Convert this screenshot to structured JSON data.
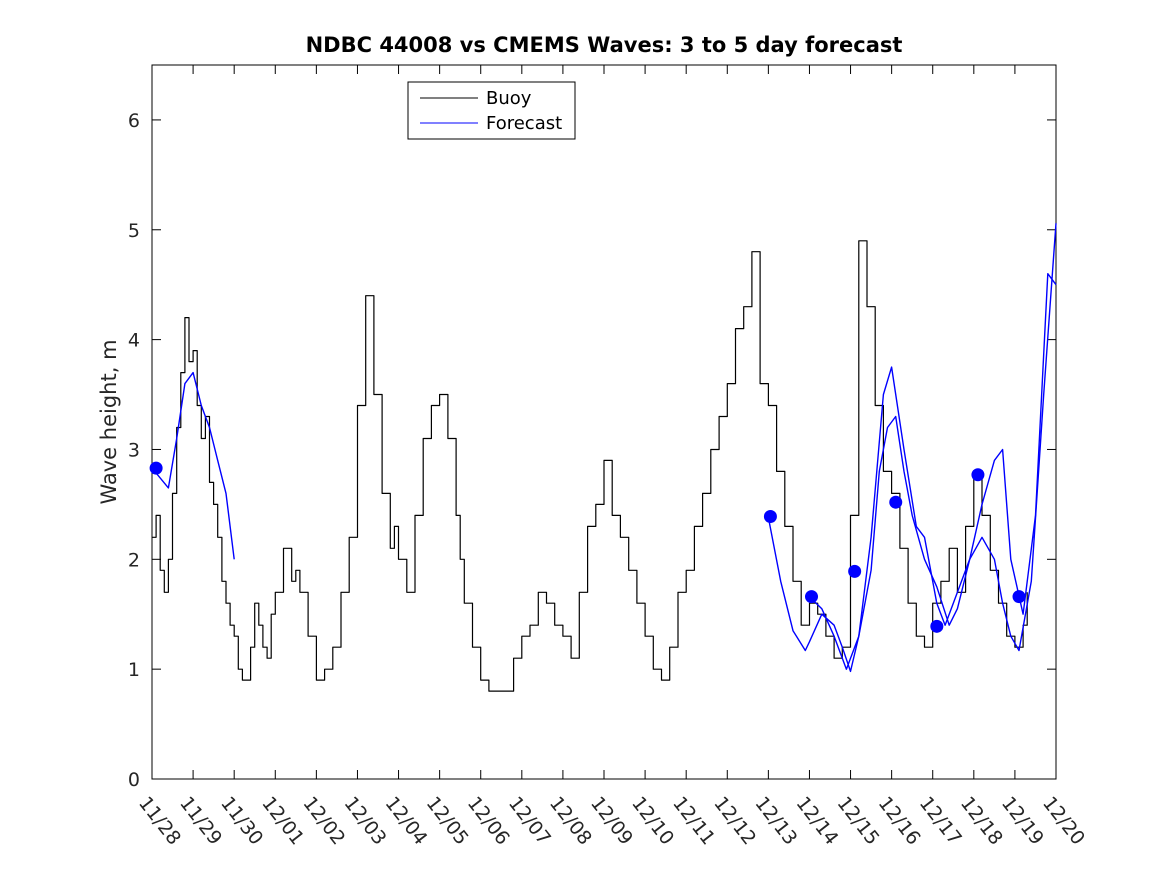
{
  "chart_data": {
    "type": "line",
    "title": "NDBC 44008 vs CMEMS Waves: 3 to 5 day forecast",
    "xlabel": "",
    "ylabel": "Wave height, m",
    "xlim": [
      0,
      22
    ],
    "ylim": [
      0,
      6.5
    ],
    "x_tick_values": [
      0,
      1,
      2,
      3,
      4,
      5,
      6,
      7,
      8,
      9,
      10,
      11,
      12,
      13,
      14,
      15,
      16,
      17,
      18,
      19,
      20,
      21,
      22
    ],
    "x_tick_labels": [
      "11/28",
      "11/29",
      "11/30",
      "12/01",
      "12/02",
      "12/03",
      "12/04",
      "12/05",
      "12/06",
      "12/07",
      "12/08",
      "12/09",
      "12/10",
      "12/11",
      "12/12",
      "12/13",
      "12/14",
      "12/15",
      "12/16",
      "12/17",
      "12/18",
      "12/19",
      "12/20"
    ],
    "y_tick_values": [
      0,
      1,
      2,
      3,
      4,
      5,
      6
    ],
    "y_tick_labels": [
      "0",
      "1",
      "2",
      "3",
      "4",
      "5",
      "6"
    ],
    "legend": {
      "placement": "top-center",
      "entries": [
        "Buoy",
        "Forecast"
      ]
    },
    "colors": {
      "buoy": "#000000",
      "forecast": "#0000ff",
      "markers": "#0000ff"
    },
    "series": [
      {
        "name": "Buoy",
        "color": "#000000",
        "x": [
          0,
          0.1,
          0.2,
          0.3,
          0.4,
          0.5,
          0.6,
          0.7,
          0.8,
          0.9,
          1.0,
          1.1,
          1.2,
          1.3,
          1.4,
          1.5,
          1.6,
          1.7,
          1.8,
          1.9,
          2.0,
          2.1,
          2.2,
          2.3,
          2.4,
          2.5,
          2.6,
          2.7,
          2.8,
          2.9,
          3.0,
          3.2,
          3.4,
          3.5,
          3.6,
          3.8,
          4.0,
          4.2,
          4.4,
          4.6,
          4.8,
          5.0,
          5.2,
          5.4,
          5.6,
          5.8,
          5.9,
          6.0,
          6.2,
          6.4,
          6.6,
          6.8,
          7.0,
          7.2,
          7.4,
          7.5,
          7.6,
          7.8,
          8.0,
          8.2,
          8.4,
          8.6,
          8.8,
          9.0,
          9.2,
          9.4,
          9.6,
          9.8,
          10.0,
          10.2,
          10.4,
          10.6,
          10.8,
          11.0,
          11.2,
          11.4,
          11.6,
          11.8,
          12.0,
          12.2,
          12.4,
          12.6,
          12.8,
          13.0,
          13.2,
          13.4,
          13.6,
          13.8,
          14.0,
          14.2,
          14.4,
          14.6,
          14.8,
          15.0,
          15.2,
          15.4,
          15.6,
          15.8,
          16.0,
          16.2,
          16.4,
          16.6,
          16.8,
          17.0,
          17.2,
          17.4,
          17.6,
          17.8,
          18.0,
          18.2,
          18.4,
          18.6,
          18.8,
          19.0,
          19.2,
          19.4,
          19.6,
          19.8,
          20.0,
          20.2,
          20.4,
          20.6,
          20.8,
          21.0,
          21.2,
          21.3
        ],
        "values": [
          2.2,
          2.4,
          1.9,
          1.7,
          2.0,
          2.6,
          3.2,
          3.7,
          4.2,
          3.8,
          3.9,
          3.4,
          3.1,
          3.3,
          2.7,
          2.5,
          2.2,
          1.8,
          1.6,
          1.4,
          1.3,
          1.0,
          0.9,
          0.9,
          1.2,
          1.6,
          1.4,
          1.2,
          1.1,
          1.5,
          1.7,
          2.1,
          1.8,
          1.9,
          1.7,
          1.3,
          0.9,
          1.0,
          1.2,
          1.7,
          2.2,
          3.4,
          4.4,
          3.5,
          2.6,
          2.1,
          2.3,
          2.0,
          1.7,
          2.4,
          3.1,
          3.4,
          3.5,
          3.1,
          2.4,
          2.0,
          1.6,
          1.2,
          0.9,
          0.8,
          0.8,
          0.8,
          1.1,
          1.3,
          1.4,
          1.7,
          1.6,
          1.4,
          1.3,
          1.1,
          1.7,
          2.3,
          2.5,
          2.9,
          2.4,
          2.2,
          1.9,
          1.6,
          1.3,
          1.0,
          0.9,
          1.2,
          1.7,
          1.9,
          2.3,
          2.6,
          3.0,
          3.3,
          3.6,
          4.1,
          4.3,
          4.8,
          3.6,
          3.4,
          2.8,
          2.3,
          1.8,
          1.4,
          1.6,
          1.5,
          1.3,
          1.1,
          1.2,
          2.4,
          4.9,
          4.3,
          3.4,
          2.8,
          2.6,
          2.1,
          1.6,
          1.3,
          1.2,
          1.6,
          1.8,
          2.1,
          1.7,
          2.3,
          2.8,
          2.4,
          1.9,
          1.6,
          1.3,
          1.2,
          1.4,
          1.7
        ]
      },
      {
        "name": "Forecast",
        "color": "#0000ff",
        "segments": [
          {
            "x": [
              0,
              0.4,
              0.6,
              0.8,
              1.0,
              1.2,
              1.4,
              1.6,
              1.8,
              2.0
            ],
            "values": [
              2.83,
              2.65,
              3.1,
              3.6,
              3.7,
              3.4,
              3.2,
              2.9,
              2.6,
              2.0
            ]
          },
          {
            "x": [
              15.0,
              15.3,
              15.6,
              15.9,
              16.0,
              16.3,
              16.6,
              16.8,
              17.0,
              17.2,
              17.5,
              17.7,
              17.9,
              18.1,
              18.3,
              18.5,
              18.8,
              19.1,
              19.4,
              19.6,
              19.9,
              20.2,
              20.5,
              20.7,
              20.9,
              21.1,
              21.4,
              21.7,
              22.0
            ],
            "values": [
              2.38,
              1.8,
              1.35,
              1.17,
              1.25,
              1.5,
              1.4,
              1.2,
              0.98,
              1.3,
              1.9,
              2.8,
              3.2,
              3.3,
              2.8,
              2.4,
              2.0,
              1.75,
              1.4,
              1.55,
              2.0,
              2.2,
              2.0,
              1.6,
              1.3,
              1.17,
              1.8,
              3.5,
              5.06
            ]
          },
          {
            "x": [
              16.0,
              16.3,
              16.6,
              16.9,
              17.2,
              17.5,
              17.8,
              18.0,
              18.3,
              18.6,
              18.8,
              19.1,
              19.3,
              19.6,
              19.9,
              20.2,
              20.5,
              20.7,
              20.9,
              21.2,
              21.5,
              21.8,
              22.0
            ],
            "values": [
              1.66,
              1.55,
              1.3,
              1.0,
              1.3,
              2.2,
              3.5,
              3.75,
              3.0,
              2.3,
              2.2,
              1.6,
              1.4,
              1.7,
              2.0,
              2.5,
              2.9,
              3.0,
              2.0,
              1.5,
              2.4,
              4.6,
              4.5
            ]
          }
        ]
      },
      {
        "name": "Forecast start points",
        "color": "#0000ff",
        "x": [
          0.1,
          15.05,
          16.05,
          17.1,
          18.1,
          19.1,
          20.1,
          21.1
        ],
        "values": [
          2.83,
          2.39,
          1.66,
          1.89,
          2.52,
          1.39,
          2.77,
          1.66
        ]
      }
    ]
  }
}
